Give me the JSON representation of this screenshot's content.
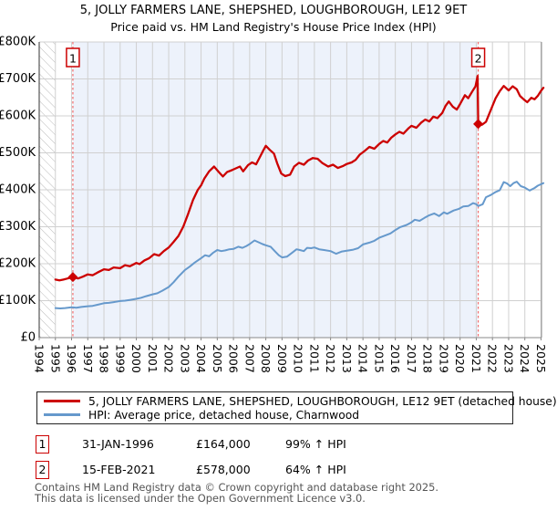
{
  "title": {
    "line1": "5, JOLLY FARMERS LANE, SHEPSHED, LOUGHBOROUGH, LE12 9ET",
    "line2": "Price paid vs. HM Land Registry's House Price Index (HPI)"
  },
  "chart_data": {
    "type": "line",
    "x_axis": {
      "range": [
        1994,
        2025.03
      ],
      "tick_years": [
        1994,
        1995,
        1996,
        1997,
        1998,
        1999,
        2000,
        2001,
        2002,
        2003,
        2004,
        2005,
        2006,
        2007,
        2008,
        2009,
        2010,
        2011,
        2012,
        2013,
        2014,
        2015,
        2016,
        2017,
        2018,
        2019,
        2020,
        2021,
        2022,
        2023,
        2024,
        2025
      ]
    },
    "y_axis": {
      "range": [
        0,
        800
      ],
      "unit": "£K",
      "tick_values": [
        0,
        100,
        200,
        300,
        400,
        500,
        600,
        700,
        800
      ],
      "tick_labels": [
        "£0",
        "£100K",
        "£200K",
        "£300K",
        "£400K",
        "£500K",
        "£600K",
        "£700K",
        "£800K"
      ]
    },
    "grid": true,
    "no_data_hatch_region": [
      1994.0,
      1995.0
    ],
    "shaded_region": [
      1996.08,
      2021.12
    ],
    "colors": {
      "property": "#cc0000",
      "hpi": "#6699cc",
      "marker_line": "#f26d6d",
      "band": "#edf2fb",
      "grid": "#d0d0d0",
      "spine": "#888888",
      "hatch": "#bbbbbb"
    },
    "markers": [
      {
        "label": "1",
        "x": 1996.08,
        "y": 164
      },
      {
        "label": "2",
        "x": 2021.12,
        "y": 578
      }
    ],
    "series": [
      {
        "name": "5, JOLLY FARMERS LANE, SHEPSHED, LOUGHBOROUGH, LE12 9ET (detached house)",
        "color": "#cc0000",
        "width": 2.3,
        "points": [
          [
            1995.0,
            157
          ],
          [
            1995.25,
            155
          ],
          [
            1995.5,
            157
          ],
          [
            1995.75,
            160
          ],
          [
            1996.08,
            164
          ],
          [
            1996.4,
            160
          ],
          [
            1996.7,
            165
          ],
          [
            1997.0,
            171
          ],
          [
            1997.3,
            169
          ],
          [
            1997.6,
            176
          ],
          [
            1998.0,
            185
          ],
          [
            1998.3,
            183
          ],
          [
            1998.6,
            190
          ],
          [
            1999.0,
            188
          ],
          [
            1999.3,
            196
          ],
          [
            1999.6,
            193
          ],
          [
            2000.0,
            202
          ],
          [
            2000.2,
            199
          ],
          [
            2000.5,
            209
          ],
          [
            2000.8,
            215
          ],
          [
            2001.1,
            226
          ],
          [
            2001.4,
            222
          ],
          [
            2001.7,
            234
          ],
          [
            2002.0,
            244
          ],
          [
            2002.3,
            259
          ],
          [
            2002.6,
            275
          ],
          [
            2002.9,
            300
          ],
          [
            2003.2,
            335
          ],
          [
            2003.5,
            372
          ],
          [
            2003.8,
            400
          ],
          [
            2004.0,
            412
          ],
          [
            2004.2,
            430
          ],
          [
            2004.5,
            450
          ],
          [
            2004.8,
            463
          ],
          [
            2005.1,
            448
          ],
          [
            2005.35,
            436
          ],
          [
            2005.6,
            448
          ],
          [
            2005.9,
            453
          ],
          [
            2006.15,
            458
          ],
          [
            2006.4,
            463
          ],
          [
            2006.6,
            450
          ],
          [
            2006.9,
            467
          ],
          [
            2007.15,
            474
          ],
          [
            2007.4,
            469
          ],
          [
            2007.65,
            490
          ],
          [
            2007.85,
            507
          ],
          [
            2008.0,
            519
          ],
          [
            2008.25,
            508
          ],
          [
            2008.5,
            498
          ],
          [
            2008.7,
            472
          ],
          [
            2008.95,
            444
          ],
          [
            2009.2,
            437
          ],
          [
            2009.5,
            441
          ],
          [
            2009.75,
            463
          ],
          [
            2010.05,
            473
          ],
          [
            2010.35,
            468
          ],
          [
            2010.6,
            479
          ],
          [
            2010.9,
            486
          ],
          [
            2011.2,
            484
          ],
          [
            2011.5,
            472
          ],
          [
            2011.85,
            463
          ],
          [
            2012.15,
            468
          ],
          [
            2012.45,
            459
          ],
          [
            2012.75,
            464
          ],
          [
            2013.0,
            470
          ],
          [
            2013.3,
            474
          ],
          [
            2013.55,
            481
          ],
          [
            2013.8,
            495
          ],
          [
            2014.1,
            505
          ],
          [
            2014.4,
            516
          ],
          [
            2014.7,
            511
          ],
          [
            2015.0,
            524
          ],
          [
            2015.25,
            532
          ],
          [
            2015.5,
            528
          ],
          [
            2015.75,
            541
          ],
          [
            2016.0,
            550
          ],
          [
            2016.25,
            557
          ],
          [
            2016.5,
            552
          ],
          [
            2016.8,
            566
          ],
          [
            2017.0,
            573
          ],
          [
            2017.3,
            568
          ],
          [
            2017.6,
            582
          ],
          [
            2017.85,
            590
          ],
          [
            2018.1,
            585
          ],
          [
            2018.35,
            598
          ],
          [
            2018.6,
            594
          ],
          [
            2018.9,
            608
          ],
          [
            2019.1,
            627
          ],
          [
            2019.3,
            639
          ],
          [
            2019.55,
            625
          ],
          [
            2019.8,
            617
          ],
          [
            2020.0,
            632
          ],
          [
            2020.3,
            656
          ],
          [
            2020.5,
            648
          ],
          [
            2020.75,
            666
          ],
          [
            2020.95,
            680
          ],
          [
            2021.08,
            708
          ],
          [
            2021.12,
            578
          ],
          [
            2021.35,
            576
          ],
          [
            2021.6,
            584
          ],
          [
            2021.9,
            616
          ],
          [
            2022.2,
            648
          ],
          [
            2022.45,
            667
          ],
          [
            2022.7,
            681
          ],
          [
            2023.0,
            669
          ],
          [
            2023.25,
            680
          ],
          [
            2023.5,
            672
          ],
          [
            2023.7,
            654
          ],
          [
            2023.95,
            644
          ],
          [
            2024.15,
            637
          ],
          [
            2024.4,
            649
          ],
          [
            2024.6,
            645
          ],
          [
            2024.8,
            654
          ],
          [
            2025.0,
            668
          ],
          [
            2025.15,
            676
          ]
        ]
      },
      {
        "name": "HPI: Average price, detached house, Charnwood",
        "color": "#6699cc",
        "width": 2.0,
        "points": [
          [
            1995.0,
            80
          ],
          [
            1995.3,
            79
          ],
          [
            1995.6,
            80
          ],
          [
            1996.0,
            82
          ],
          [
            1996.3,
            81
          ],
          [
            1996.6,
            83
          ],
          [
            1997.0,
            85
          ],
          [
            1997.3,
            86
          ],
          [
            1997.6,
            89
          ],
          [
            1998.0,
            93
          ],
          [
            1998.3,
            94
          ],
          [
            1998.6,
            96
          ],
          [
            1999.0,
            99
          ],
          [
            1999.3,
            100
          ],
          [
            1999.6,
            102
          ],
          [
            2000.0,
            105
          ],
          [
            2000.3,
            108
          ],
          [
            2000.6,
            112
          ],
          [
            2001.0,
            117
          ],
          [
            2001.3,
            120
          ],
          [
            2001.6,
            127
          ],
          [
            2002.0,
            137
          ],
          [
            2002.3,
            150
          ],
          [
            2002.6,
            165
          ],
          [
            2003.0,
            183
          ],
          [
            2003.3,
            192
          ],
          [
            2003.6,
            203
          ],
          [
            2004.0,
            215
          ],
          [
            2004.25,
            223
          ],
          [
            2004.5,
            220
          ],
          [
            2004.75,
            230
          ],
          [
            2005.0,
            237
          ],
          [
            2005.25,
            234
          ],
          [
            2005.5,
            236
          ],
          [
            2005.75,
            239
          ],
          [
            2006.0,
            240
          ],
          [
            2006.3,
            246
          ],
          [
            2006.55,
            243
          ],
          [
            2006.8,
            248
          ],
          [
            2007.0,
            253
          ],
          [
            2007.3,
            263
          ],
          [
            2007.55,
            258
          ],
          [
            2007.8,
            253
          ],
          [
            2008.0,
            250
          ],
          [
            2008.3,
            246
          ],
          [
            2008.55,
            234
          ],
          [
            2008.8,
            223
          ],
          [
            2009.0,
            217
          ],
          [
            2009.3,
            219
          ],
          [
            2009.6,
            229
          ],
          [
            2009.9,
            239
          ],
          [
            2010.1,
            237
          ],
          [
            2010.35,
            234
          ],
          [
            2010.55,
            243
          ],
          [
            2010.8,
            242
          ],
          [
            2011.0,
            244
          ],
          [
            2011.3,
            239
          ],
          [
            2011.6,
            237
          ],
          [
            2012.0,
            234
          ],
          [
            2012.35,
            227
          ],
          [
            2012.7,
            233
          ],
          [
            2013.0,
            235
          ],
          [
            2013.4,
            238
          ],
          [
            2013.7,
            242
          ],
          [
            2014.0,
            252
          ],
          [
            2014.4,
            257
          ],
          [
            2014.7,
            262
          ],
          [
            2015.0,
            270
          ],
          [
            2015.3,
            275
          ],
          [
            2015.7,
            282
          ],
          [
            2016.0,
            291
          ],
          [
            2016.3,
            299
          ],
          [
            2016.7,
            305
          ],
          [
            2017.0,
            312
          ],
          [
            2017.2,
            319
          ],
          [
            2017.5,
            316
          ],
          [
            2017.8,
            324
          ],
          [
            2018.1,
            331
          ],
          [
            2018.4,
            336
          ],
          [
            2018.7,
            329
          ],
          [
            2019.0,
            339
          ],
          [
            2019.2,
            335
          ],
          [
            2019.6,
            344
          ],
          [
            2019.9,
            348
          ],
          [
            2020.2,
            355
          ],
          [
            2020.5,
            356
          ],
          [
            2020.8,
            364
          ],
          [
            2021.0,
            361
          ],
          [
            2021.12,
            356
          ],
          [
            2021.4,
            361
          ],
          [
            2021.6,
            380
          ],
          [
            2021.9,
            386
          ],
          [
            2022.2,
            394
          ],
          [
            2022.45,
            399
          ],
          [
            2022.7,
            421
          ],
          [
            2022.9,
            417
          ],
          [
            2023.1,
            410
          ],
          [
            2023.3,
            418
          ],
          [
            2023.5,
            422
          ],
          [
            2023.75,
            410
          ],
          [
            2024.0,
            406
          ],
          [
            2024.3,
            398
          ],
          [
            2024.6,
            405
          ],
          [
            2024.8,
            411
          ],
          [
            2025.15,
            418
          ]
        ]
      }
    ]
  },
  "legend": {
    "items": [
      {
        "label": "5, JOLLY FARMERS LANE, SHEPSHED, LOUGHBOROUGH, LE12 9ET (detached house)",
        "color": "#cc0000"
      },
      {
        "label": "HPI: Average price, detached house, Charnwood",
        "color": "#6699cc"
      }
    ]
  },
  "annotations": [
    {
      "num": "1",
      "date": "31-JAN-1996",
      "price": "£164,000",
      "hpi": "99% ↑ HPI"
    },
    {
      "num": "2",
      "date": "15-FEB-2021",
      "price": "£578,000",
      "hpi": "64% ↑ HPI"
    }
  ],
  "footer": {
    "line1": "Contains HM Land Registry data © Crown copyright and database right 2025.",
    "line2": "This data is licensed under the Open Government Licence v3.0."
  }
}
